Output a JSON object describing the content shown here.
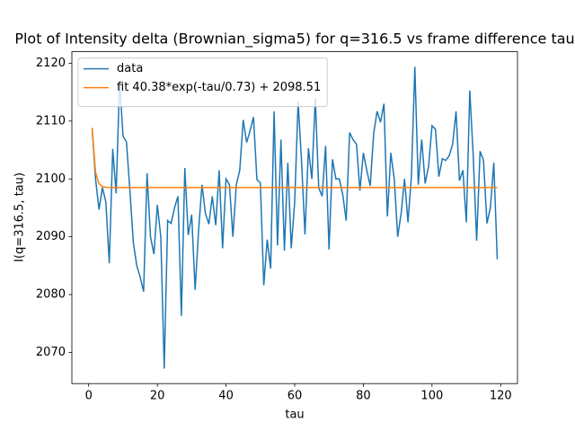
{
  "chart_data": {
    "type": "line",
    "title": "Plot of Intensity delta (Brownian_sigma5) for q=316.5 vs frame difference tau",
    "xlabel": "tau",
    "ylabel": "I(q=316.5, tau)",
    "x": [
      1,
      2,
      3,
      4,
      5,
      6,
      7,
      8,
      9,
      10,
      11,
      12,
      13,
      14,
      15,
      16,
      17,
      18,
      19,
      20,
      21,
      22,
      23,
      24,
      25,
      26,
      27,
      28,
      29,
      30,
      31,
      32,
      33,
      34,
      35,
      36,
      37,
      38,
      39,
      40,
      41,
      42,
      43,
      44,
      45,
      46,
      47,
      48,
      49,
      50,
      51,
      52,
      53,
      54,
      55,
      56,
      57,
      58,
      59,
      60,
      61,
      62,
      63,
      64,
      65,
      66,
      67,
      68,
      69,
      70,
      71,
      72,
      73,
      74,
      75,
      76,
      77,
      78,
      79,
      80,
      81,
      82,
      83,
      84,
      85,
      86,
      87,
      88,
      89,
      90,
      91,
      92,
      93,
      94,
      95,
      96,
      97,
      98,
      99,
      100,
      101,
      102,
      103,
      104,
      105,
      106,
      107,
      108,
      109,
      110,
      111,
      112,
      113,
      114,
      115,
      116,
      117,
      118,
      119
    ],
    "series": [
      {
        "name": "data",
        "color": "#1f77b4",
        "values": [
          2108.8,
          2100,
          2094.7,
          2098.5,
          2096,
          2085.4,
          2105.2,
          2097.5,
          2117,
          2107.4,
          2106.4,
          2098,
          2089,
          2085,
          2083,
          2080.5,
          2101,
          2090,
          2087,
          2095.5,
          2090,
          2067.2,
          2092.8,
          2092.3,
          2095,
          2097,
          2076.3,
          2101.9,
          2090.3,
          2093.8,
          2080.8,
          2091,
          2099,
          2094,
          2092.2,
          2097,
          2092,
          2101.5,
          2088,
          2100,
          2099,
          2090,
          2099,
          2101.5,
          2110.2,
          2106.3,
          2108.3,
          2110.7,
          2099.9,
          2099.3,
          2081.6,
          2089.5,
          2084.5,
          2111.7,
          2088.5,
          2106.8,
          2087.6,
          2102.8,
          2088,
          2096,
          2113.4,
          2103,
          2090.4,
          2105.3,
          2100,
          2114,
          2098.5,
          2097,
          2105.7,
          2087.8,
          2103.4,
          2100,
          2100,
          2097.3,
          2092.8,
          2108,
          2106.8,
          2106,
          2098,
          2104.5,
          2101.5,
          2098.8,
          2107.8,
          2111.7,
          2109.8,
          2113,
          2093.5,
          2104.5,
          2100,
          2090,
          2094,
          2100,
          2092.5,
          2100.5,
          2119.4,
          2099,
          2106.8,
          2099.2,
          2102.2,
          2109.2,
          2108.6,
          2100.4,
          2103.5,
          2103.2,
          2104,
          2106,
          2111.7,
          2099.7,
          2101.5,
          2092.5,
          2115.3,
          2104,
          2089.3,
          2104.8,
          2103.2,
          2092.3,
          2095,
          2102.8,
          2086.1
        ]
      },
      {
        "name": "fit 40.38*exp(-tau/0.73) + 2098.51",
        "color": "#ff7f0e",
        "values": [
          2108.77,
          2101.12,
          2099.17,
          2098.68,
          2098.55,
          2098.52,
          2098.51,
          2098.51,
          2098.51,
          2098.51,
          2098.51,
          2098.51,
          2098.51,
          2098.51,
          2098.51,
          2098.51,
          2098.51,
          2098.51,
          2098.51,
          2098.51,
          2098.51,
          2098.51,
          2098.51,
          2098.51,
          2098.51,
          2098.51,
          2098.51,
          2098.51,
          2098.51,
          2098.51,
          2098.51,
          2098.51,
          2098.51,
          2098.51,
          2098.51,
          2098.51,
          2098.51,
          2098.51,
          2098.51,
          2098.51,
          2098.51,
          2098.51,
          2098.51,
          2098.51,
          2098.51,
          2098.51,
          2098.51,
          2098.51,
          2098.51,
          2098.51,
          2098.51,
          2098.51,
          2098.51,
          2098.51,
          2098.51,
          2098.51,
          2098.51,
          2098.51,
          2098.51,
          2098.51,
          2098.51,
          2098.51,
          2098.51,
          2098.51,
          2098.51,
          2098.51,
          2098.51,
          2098.51,
          2098.51,
          2098.51,
          2098.51,
          2098.51,
          2098.51,
          2098.51,
          2098.51,
          2098.51,
          2098.51,
          2098.51,
          2098.51,
          2098.51,
          2098.51,
          2098.51,
          2098.51,
          2098.51,
          2098.51,
          2098.51,
          2098.51,
          2098.51,
          2098.51,
          2098.51,
          2098.51,
          2098.51,
          2098.51,
          2098.51,
          2098.51,
          2098.51,
          2098.51,
          2098.51,
          2098.51,
          2098.51,
          2098.51,
          2098.51,
          2098.51,
          2098.51,
          2098.51,
          2098.51,
          2098.51,
          2098.51,
          2098.51,
          2098.51,
          2098.51,
          2098.51,
          2098.51,
          2098.51,
          2098.51,
          2098.51,
          2098.51,
          2098.51,
          2098.51
        ]
      }
    ],
    "xlim": [
      -4.9,
      124.9
    ],
    "xticks": [
      0,
      20,
      40,
      60,
      80,
      100,
      120
    ],
    "ylim": [
      2064.6,
      2122.0
    ],
    "yticks": [
      2070,
      2080,
      2090,
      2100,
      2110,
      2120
    ],
    "grid": false,
    "legend": "upper left"
  }
}
